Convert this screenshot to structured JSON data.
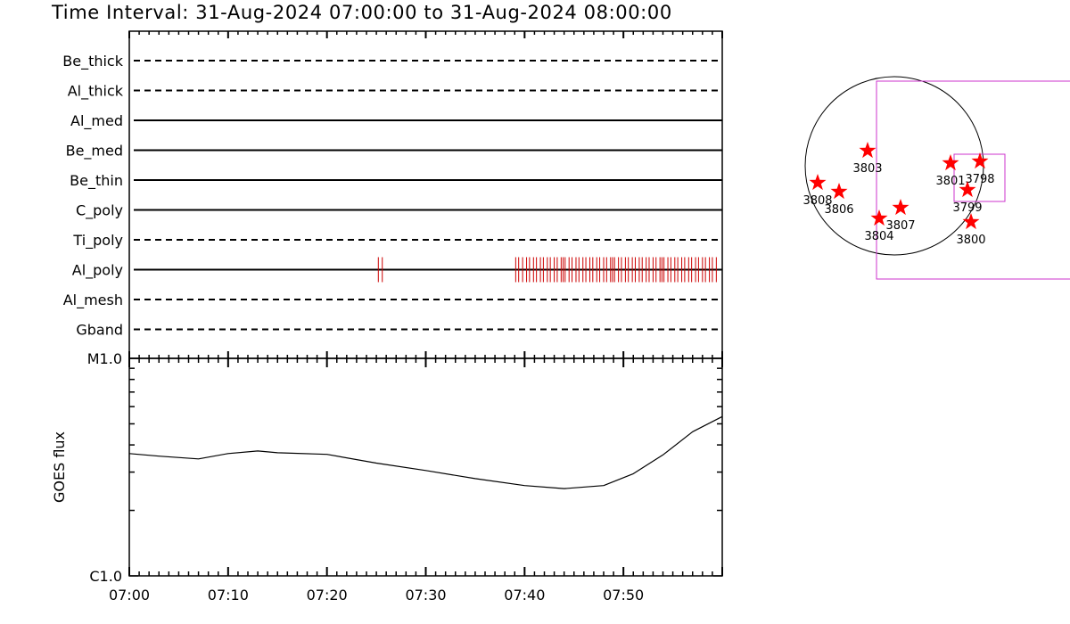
{
  "title": "Time Interval: 31-Aug-2024 07:00:00 to 31-Aug-2024 08:00:00",
  "colors": {
    "axis": "#000000",
    "events": "#cc0000",
    "fov": "#cc33cc",
    "star": "#ff0000"
  },
  "chart_data": [
    {
      "type": "timeline",
      "x_range_minutes": [
        0,
        60
      ],
      "x_ticks": [
        "07:00",
        "07:10",
        "07:20",
        "07:30",
        "07:40",
        "07:50"
      ],
      "x_tick_minutes": [
        0,
        10,
        20,
        30,
        40,
        50
      ],
      "channels": [
        {
          "name": "Be_thick",
          "style": "dashed",
          "events": []
        },
        {
          "name": "Al_thick",
          "style": "dashed",
          "events": []
        },
        {
          "name": "Al_med",
          "style": "solid",
          "events": []
        },
        {
          "name": "Be_med",
          "style": "solid",
          "events": []
        },
        {
          "name": "Be_thin",
          "style": "solid",
          "events": []
        },
        {
          "name": "C_poly",
          "style": "solid",
          "events": []
        },
        {
          "name": "Ti_poly",
          "style": "dashed",
          "events": []
        },
        {
          "name": "Al_poly",
          "style": "solid",
          "events": [
            25.2,
            25.6,
            39.1,
            39.4,
            39.8,
            40.2,
            40.5,
            40.9,
            41.2,
            41.6,
            41.9,
            42.3,
            42.6,
            43.0,
            43.3,
            43.7,
            43.9,
            44.1,
            44.5,
            44.8,
            45.2,
            45.5,
            45.9,
            46.2,
            46.6,
            46.9,
            47.3,
            47.6,
            48.0,
            48.3,
            48.7,
            48.9,
            49.1,
            49.5,
            49.8,
            50.2,
            50.5,
            50.9,
            51.2,
            51.6,
            51.9,
            52.3,
            52.6,
            53.0,
            53.3,
            53.7,
            53.9,
            54.1,
            54.5,
            54.8,
            55.2,
            55.5,
            55.9,
            56.2,
            56.6,
            56.9,
            57.3,
            57.6,
            58.0,
            58.3,
            58.7,
            59.0,
            59.4
          ]
        },
        {
          "name": "Al_mesh",
          "style": "dashed",
          "events": []
        },
        {
          "name": "Gband",
          "style": "dashed",
          "events": []
        }
      ]
    },
    {
      "type": "line",
      "ylabel": "GOES flux",
      "y_scale": "log",
      "y_ticks": [
        "M1.0",
        "C1.0"
      ],
      "ylim": [
        1e-06,
        1e-05
      ],
      "x_range_minutes": [
        0,
        60
      ],
      "x_ticks": [
        "07:00",
        "07:10",
        "07:20",
        "07:30",
        "07:40",
        "07:50"
      ],
      "x_tick_minutes": [
        0,
        10,
        20,
        30,
        40,
        50
      ],
      "x": [
        0,
        3,
        7,
        10,
        13,
        15,
        20,
        25,
        30,
        35,
        40,
        44,
        48,
        51,
        54,
        57,
        60
      ],
      "y": [
        3.65e-06,
        3.55e-06,
        3.45e-06,
        3.65e-06,
        3.75e-06,
        3.68e-06,
        3.62e-06,
        3.3e-06,
        3.05e-06,
        2.8e-06,
        2.6e-06,
        2.52e-06,
        2.6e-06,
        2.95e-06,
        3.6e-06,
        4.6e-06,
        5.4e-06
      ]
    },
    {
      "type": "scatter",
      "description": "solar disk map",
      "regions": [
        {
          "label": "3808",
          "x": -0.86,
          "y": -0.3
        },
        {
          "label": "3806",
          "x": -0.62,
          "y": -0.4
        },
        {
          "label": "3803",
          "x": -0.3,
          "y": 0.06
        },
        {
          "label": "3804",
          "x": -0.17,
          "y": -0.7
        },
        {
          "label": "3807",
          "x": 0.07,
          "y": -0.58
        },
        {
          "label": "3801",
          "x": 0.63,
          "y": -0.08
        },
        {
          "label": "3798",
          "x": 0.96,
          "y": -0.06
        },
        {
          "label": "3799",
          "x": 0.82,
          "y": -0.38
        },
        {
          "label": "3800",
          "x": 0.86,
          "y": -0.74
        }
      ]
    }
  ]
}
